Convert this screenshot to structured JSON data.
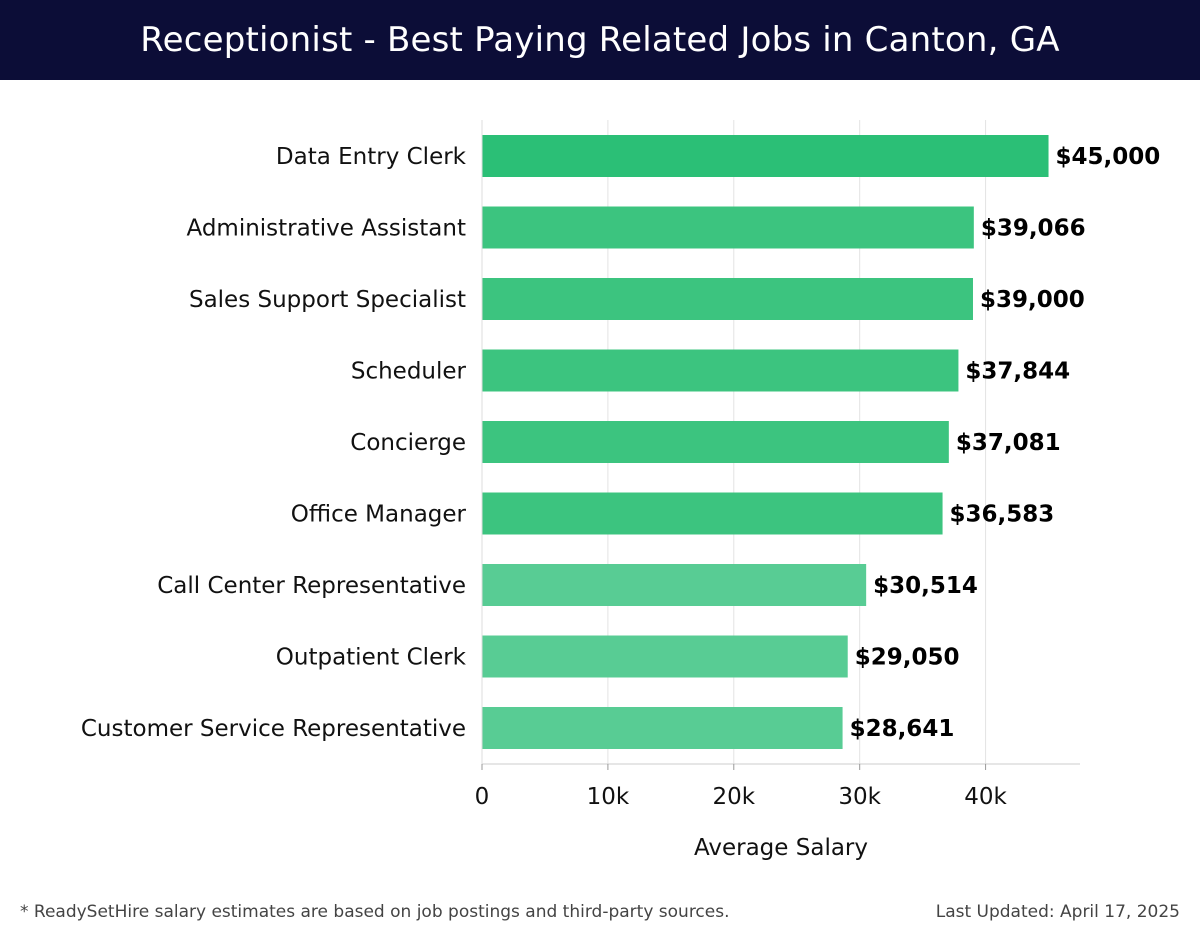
{
  "header": {
    "title": "Receptionist - Best Paying Related Jobs in Canton, GA"
  },
  "footer": {
    "note": "* ReadySetHire salary estimates are based on job postings and third-party sources.",
    "updated": "Last Updated: April 17, 2025"
  },
  "chart_data": {
    "type": "bar",
    "orientation": "horizontal",
    "title": "Receptionist - Best Paying Related Jobs in Canton, GA",
    "xlabel": "Average Salary",
    "ylabel": "",
    "xlim": [
      0,
      47500
    ],
    "xticks": [
      0,
      10000,
      20000,
      30000,
      40000
    ],
    "xtick_labels": [
      "0",
      "10k",
      "20k",
      "30k",
      "40k"
    ],
    "grid": true,
    "categories": [
      "Data Entry Clerk",
      "Administrative Assistant",
      "Sales Support Specialist",
      "Scheduler",
      "Concierge",
      "Office Manager",
      "Call Center Representative",
      "Outpatient Clerk",
      "Customer Service Representative"
    ],
    "values": [
      45000,
      39066,
      39000,
      37844,
      37081,
      36583,
      30514,
      29050,
      28641
    ],
    "value_labels": [
      "$45,000",
      "$39,066",
      "$39,000",
      "$37,844",
      "$37,081",
      "$36,583",
      "$30,514",
      "$29,050",
      "$28,641"
    ],
    "colors": [
      "#2bbf76",
      "#3cc47f",
      "#3cc47f",
      "#3cc47f",
      "#3cc47f",
      "#3cc47f",
      "#58cc94",
      "#58cc94",
      "#58cc94"
    ]
  }
}
